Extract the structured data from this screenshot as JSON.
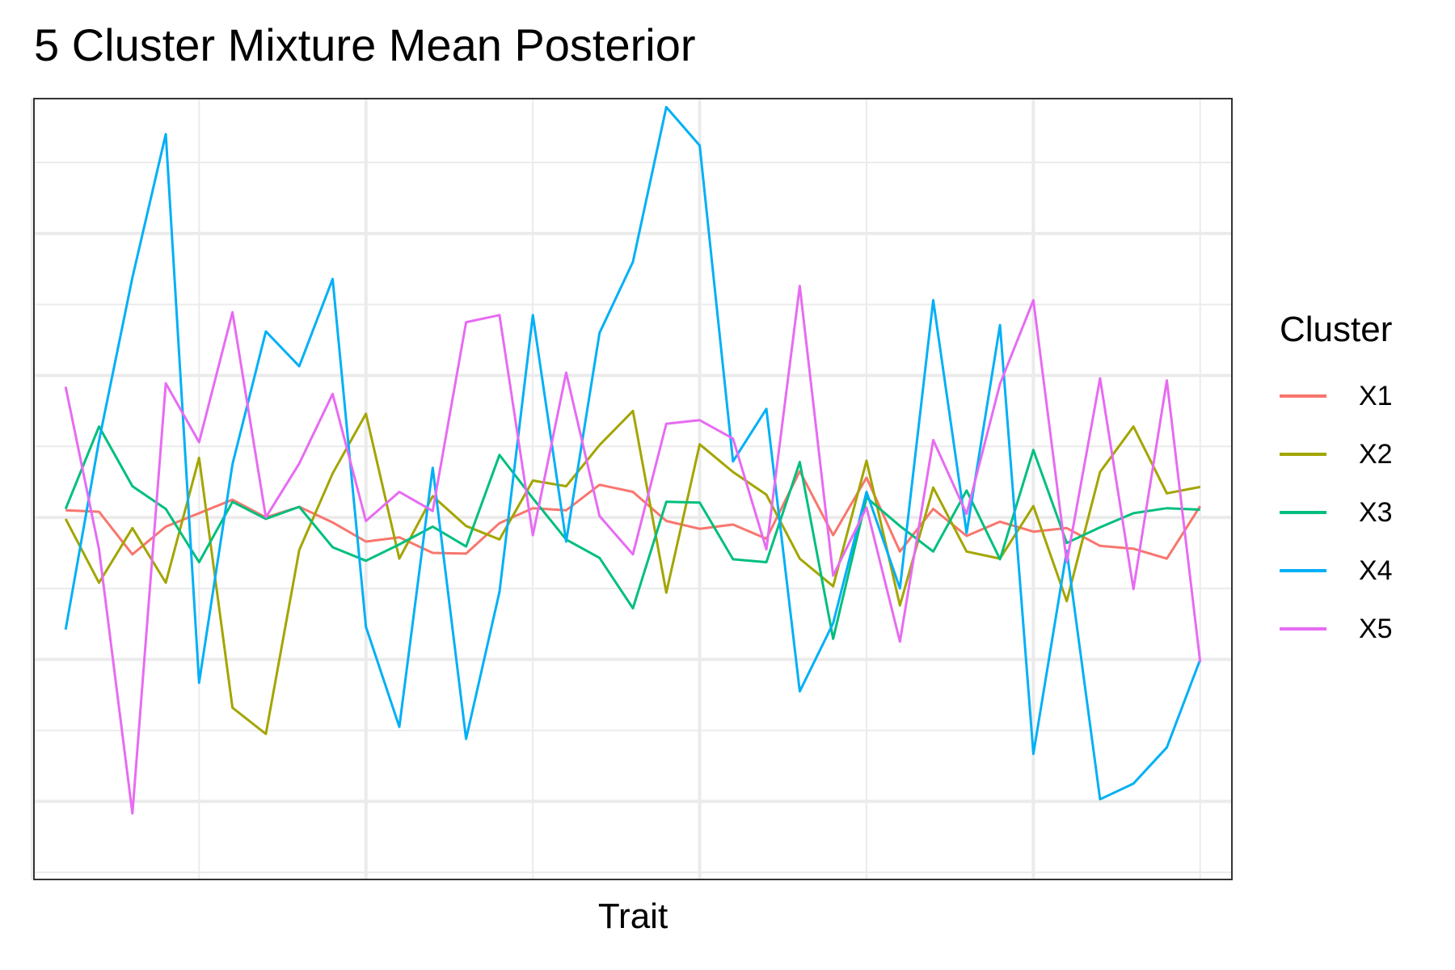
{
  "chart_data": {
    "type": "line",
    "title": "5 Cluster Mixture Mean Posterior",
    "xlabel": "Trait",
    "ylabel": "",
    "legend_title": "Cluster",
    "legend_position": "right",
    "grid": true,
    "x": [
      1,
      2,
      3,
      4,
      5,
      6,
      7,
      8,
      9,
      10,
      11,
      12,
      13,
      14,
      15,
      16,
      17,
      18,
      19,
      20,
      21,
      22,
      23,
      24,
      25,
      26,
      27,
      28,
      29,
      30,
      31,
      32,
      33,
      34,
      35
    ],
    "xlim": [
      0.05,
      35.95
    ],
    "ylim": [
      -5.1,
      5.9
    ],
    "series": [
      {
        "name": "X1",
        "color": "#F8766D",
        "values": [
          0.1,
          0.08,
          -0.52,
          -0.13,
          0.06,
          0.25,
          0.0,
          0.15,
          -0.07,
          -0.34,
          -0.28,
          -0.5,
          -0.51,
          -0.08,
          0.13,
          0.1,
          0.46,
          0.36,
          -0.05,
          -0.16,
          -0.1,
          -0.3,
          0.65,
          -0.25,
          0.56,
          -0.48,
          0.12,
          -0.26,
          -0.06,
          -0.2,
          -0.15,
          -0.4,
          -0.44,
          -0.58,
          0.16
        ]
      },
      {
        "name": "X2",
        "color": "#A3A500",
        "values": [
          -0.02,
          -0.92,
          -0.15,
          -0.92,
          0.84,
          -2.68,
          -3.05,
          -0.46,
          0.62,
          1.46,
          -0.58,
          0.3,
          -0.12,
          -0.31,
          0.52,
          0.44,
          1.02,
          1.5,
          -1.06,
          1.03,
          0.64,
          0.32,
          -0.58,
          -0.97,
          0.8,
          -1.24,
          0.42,
          -0.48,
          -0.58,
          0.16,
          -1.18,
          0.64,
          1.28,
          0.34,
          0.43
        ]
      },
      {
        "name": "X3",
        "color": "#00BF7D",
        "values": [
          0.12,
          1.28,
          0.44,
          0.12,
          -0.63,
          0.22,
          -0.02,
          0.15,
          -0.42,
          -0.61,
          -0.38,
          -0.13,
          -0.41,
          0.88,
          0.27,
          -0.31,
          -0.57,
          -1.28,
          0.22,
          0.21,
          -0.59,
          -0.63,
          0.78,
          -1.71,
          0.28,
          -0.12,
          -0.48,
          0.38,
          -0.59,
          0.95,
          -0.36,
          -0.14,
          0.06,
          0.13,
          0.11
        ]
      },
      {
        "name": "X4",
        "color": "#00B0F6",
        "values": [
          -1.58,
          1.08,
          3.38,
          5.4,
          -2.33,
          0.75,
          2.62,
          2.13,
          3.36,
          -1.54,
          -2.95,
          0.7,
          -3.12,
          -1.05,
          2.85,
          -0.34,
          2.6,
          3.6,
          5.78,
          5.24,
          0.79,
          1.53,
          -2.45,
          -1.49,
          0.36,
          -1.0,
          3.06,
          -0.22,
          2.71,
          -3.33,
          -0.47,
          -3.97,
          -3.75,
          -3.24,
          -2.0
        ]
      },
      {
        "name": "X5",
        "color": "#E76BF3",
        "values": [
          1.84,
          -0.45,
          -4.17,
          1.89,
          1.06,
          2.89,
          0.0,
          0.76,
          1.74,
          -0.05,
          0.36,
          0.09,
          2.75,
          2.85,
          -0.25,
          2.04,
          0.02,
          -0.52,
          1.32,
          1.37,
          1.11,
          -0.45,
          3.26,
          -0.82,
          0.14,
          -1.75,
          1.09,
          0.05,
          1.88,
          3.06,
          -0.63,
          1.96,
          -1.01,
          1.93,
          -2.04
        ]
      }
    ]
  }
}
